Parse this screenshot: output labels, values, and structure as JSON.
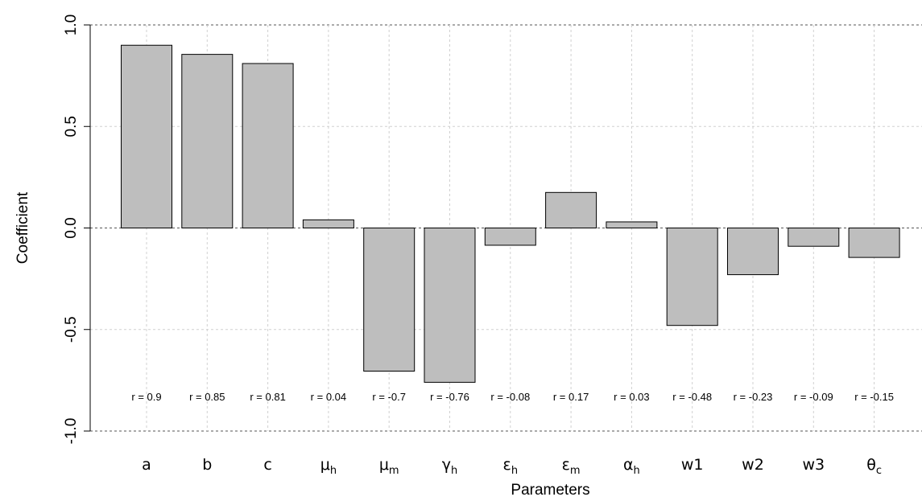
{
  "chart_data": {
    "type": "bar",
    "xlabel": "Parameters",
    "ylabel": "Coefficient",
    "ylim": [
      -1,
      1
    ],
    "yticks": [
      -1,
      -0.5,
      0,
      0.5,
      1
    ],
    "ytick_labels": [
      "-1.0",
      "-0.5",
      "0.0",
      "0.5",
      "1.0"
    ],
    "grid": true,
    "bar_color": "#bebebe",
    "bar_edge_color": "#000000",
    "categories": [
      {
        "base": "a",
        "sub": ""
      },
      {
        "base": "b",
        "sub": ""
      },
      {
        "base": "c",
        "sub": ""
      },
      {
        "base": "μ",
        "sub": "h"
      },
      {
        "base": "μ",
        "sub": "m"
      },
      {
        "base": "γ",
        "sub": "h"
      },
      {
        "base": "ε",
        "sub": "h"
      },
      {
        "base": "ε",
        "sub": "m"
      },
      {
        "base": "α",
        "sub": "h"
      },
      {
        "base": "w1",
        "sub": ""
      },
      {
        "base": "w2",
        "sub": ""
      },
      {
        "base": "w3",
        "sub": ""
      },
      {
        "base": "θ",
        "sub": "c"
      }
    ],
    "values": [
      0.9,
      0.855,
      0.81,
      0.04,
      -0.705,
      -0.76,
      -0.085,
      0.175,
      0.03,
      -0.48,
      -0.23,
      -0.09,
      -0.145
    ],
    "annotations": [
      "r = 0.9",
      "r = 0.85",
      "r = 0.81",
      "r = 0.04",
      "r = -0.7",
      "r = -0.76",
      "r = -0.08",
      "r = 0.17",
      "r = 0.03",
      "r = -0.48",
      "r = -0.23",
      "r = -0.09",
      "r = -0.15"
    ],
    "annotation_y": -0.83
  }
}
